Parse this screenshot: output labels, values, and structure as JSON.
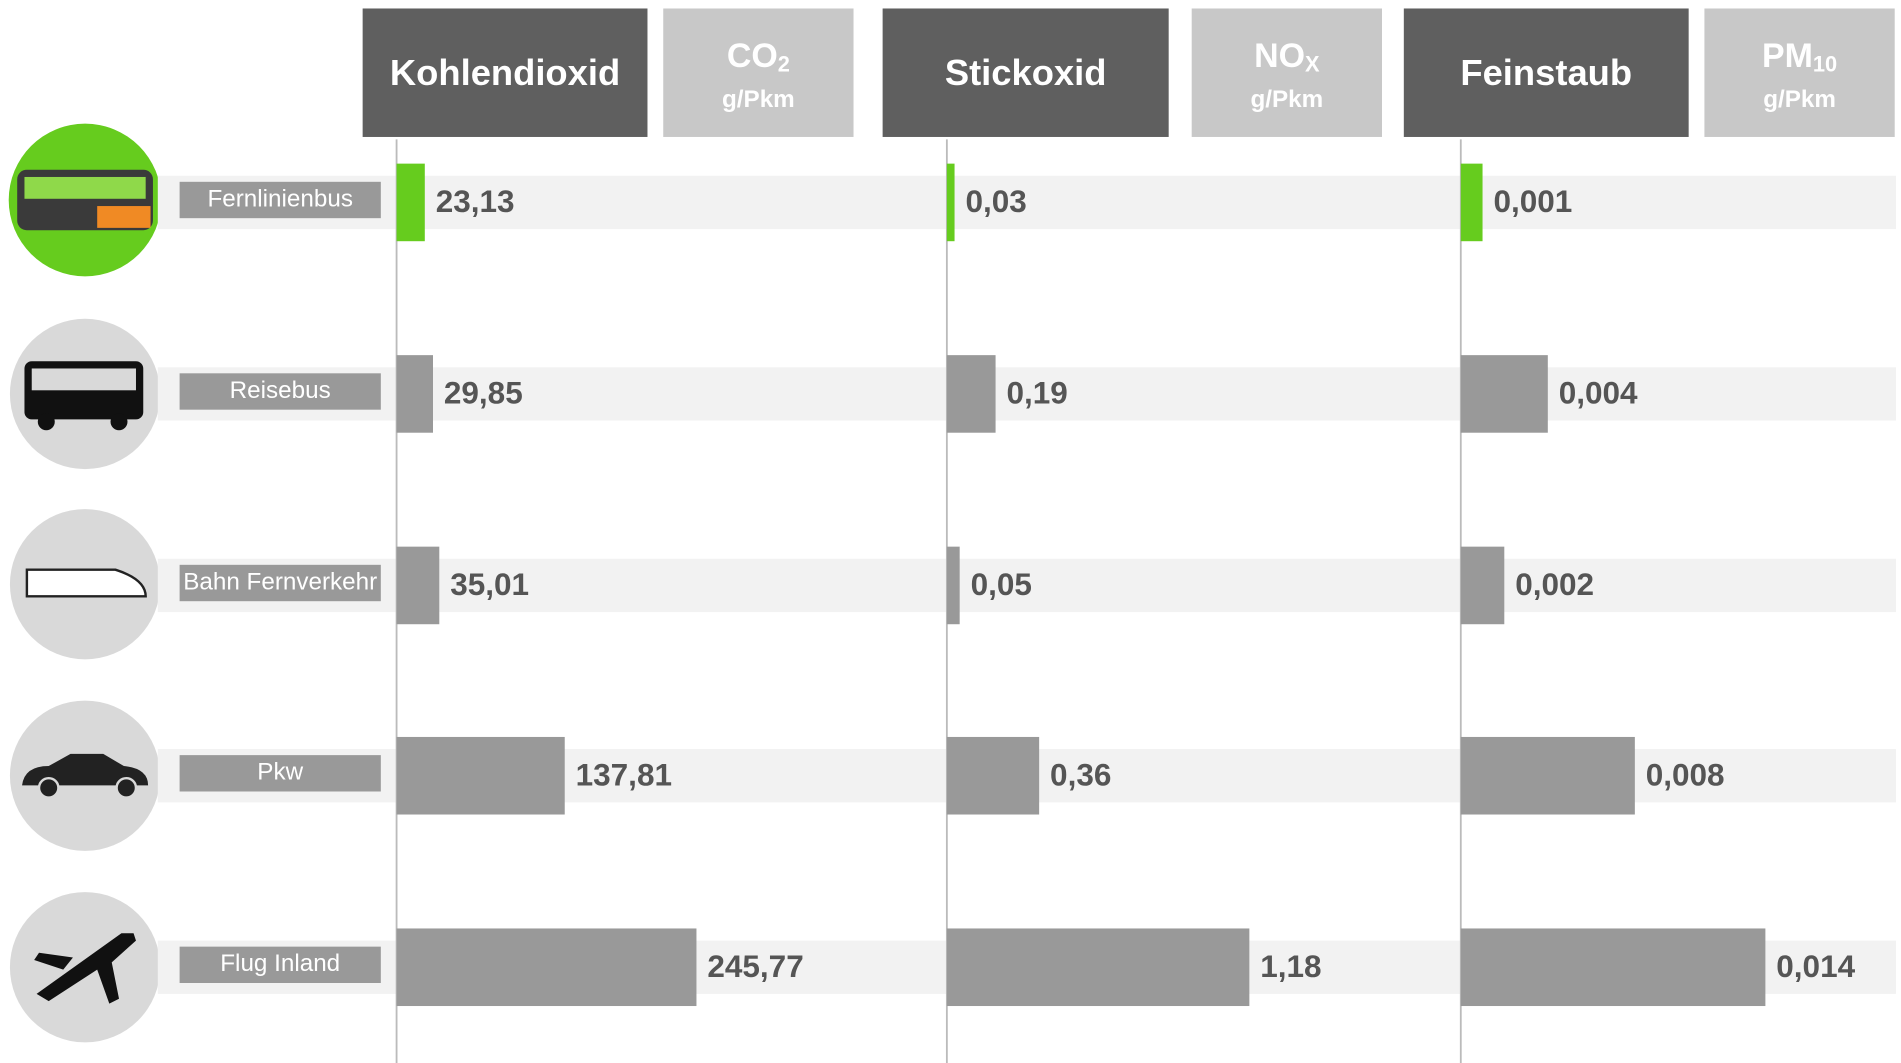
{
  "chart_data": [
    {
      "type": "bar",
      "orientation": "horizontal",
      "title": "Kohlendioxid",
      "formula": "CO",
      "formula_sub": "2",
      "unit_label": "g/Pkm",
      "categories": [
        "Fernlinienbus",
        "Reisebus",
        "Bahn Fernverkehr",
        "Pkw",
        "Flug Inland"
      ],
      "values": [
        23.13,
        29.85,
        35.01,
        137.81,
        245.77
      ],
      "value_labels": [
        "23,13",
        "29,85",
        "35,01",
        "137,81",
        "245,77"
      ],
      "colors": [
        "#66cc1e",
        "#999999",
        "#999999",
        "#999999",
        "#999999"
      ],
      "xlim": [
        0,
        450
      ]
    },
    {
      "type": "bar",
      "orientation": "horizontal",
      "title": "Stickoxid",
      "formula": "NO",
      "formula_sub": "X",
      "unit_label": "g/Pkm",
      "values": [
        0.03,
        0.19,
        0.05,
        0.36,
        1.18
      ],
      "value_labels": [
        "0,03",
        "0,19",
        "0,05",
        "0,36",
        "1,18"
      ],
      "colors": [
        "#66cc1e",
        "#999999",
        "#999999",
        "#999999",
        "#999999"
      ],
      "xlim": [
        0,
        2
      ]
    },
    {
      "type": "bar",
      "orientation": "horizontal",
      "title": "Feinstaub",
      "formula": "PM",
      "formula_sub": "10",
      "unit_label": "g/Pkm",
      "values": [
        0.001,
        0.004,
        0.002,
        0.008,
        0.014
      ],
      "value_labels": [
        "0,001",
        "0,004",
        "0,002",
        "0,008",
        "0,014"
      ],
      "colors": [
        "#66cc1e",
        "#999999",
        "#999999",
        "#999999",
        "#999999"
      ],
      "xlim": [
        0,
        0.02
      ]
    }
  ]
}
